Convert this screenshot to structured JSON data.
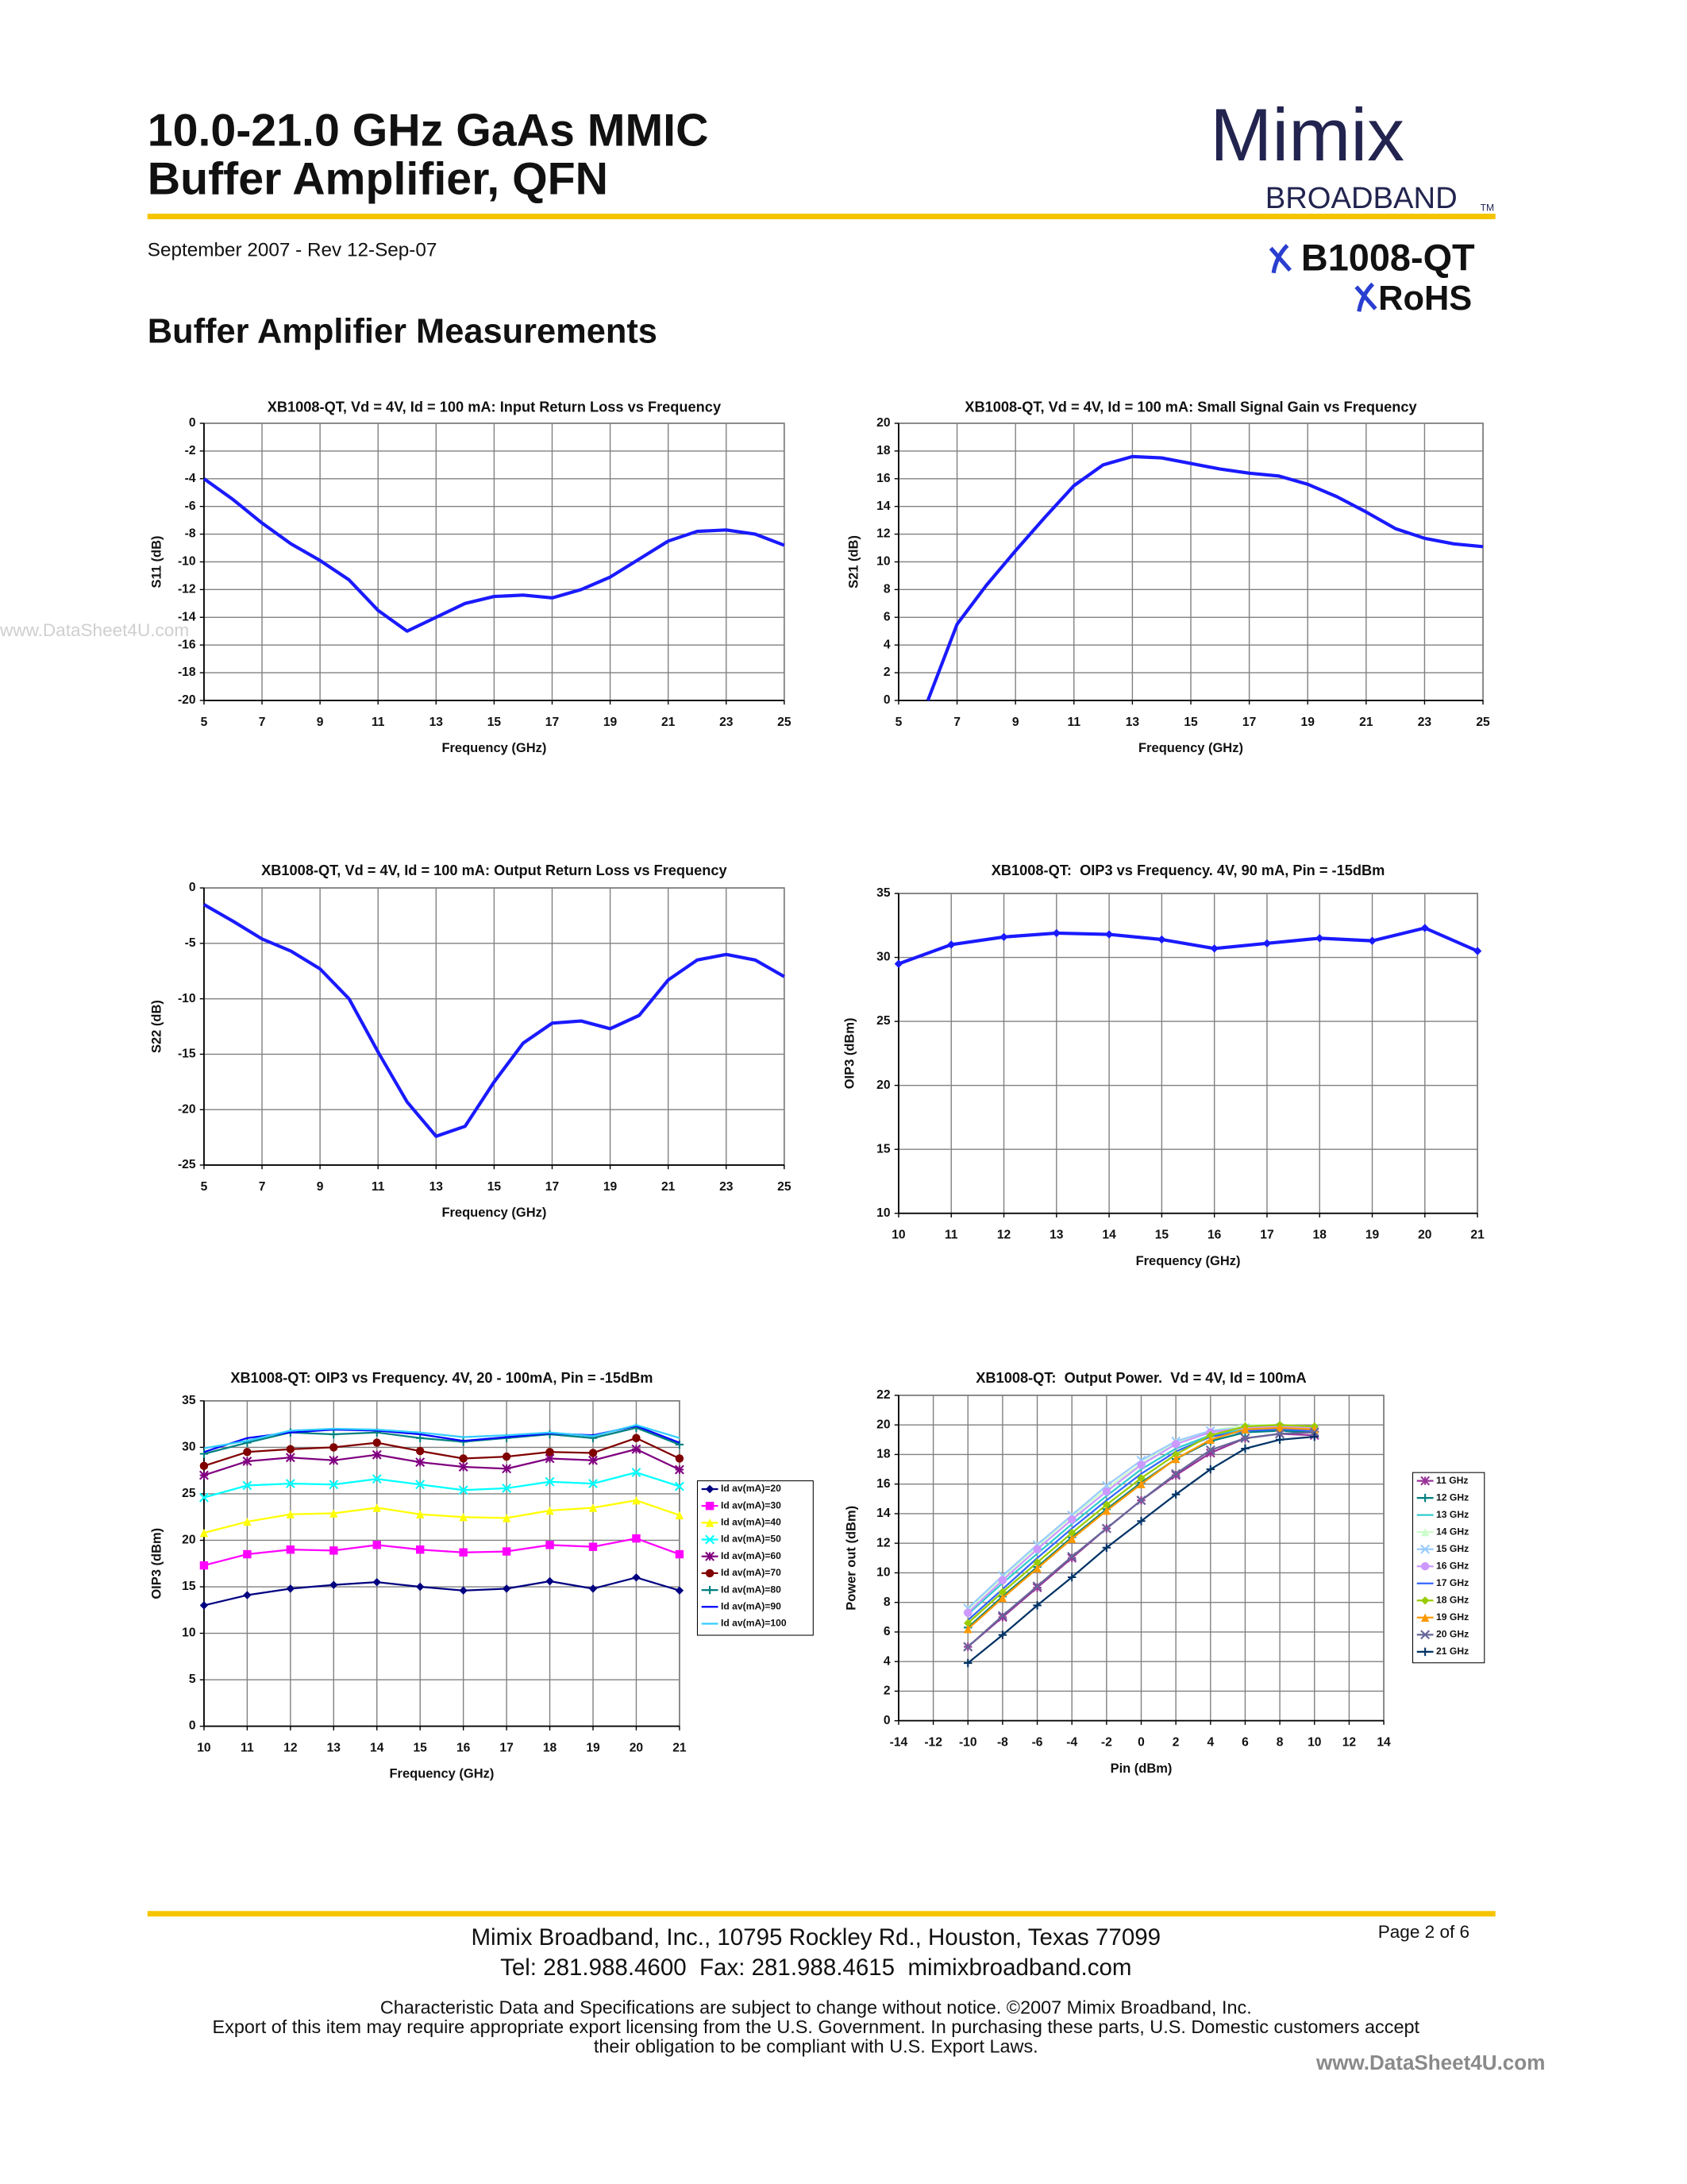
{
  "header": {
    "title_lines": [
      "10.0-21.0 GHz GaAs MMIC",
      "Buffer Amplifier, QFN"
    ],
    "date": "September 2007 - Rev 12-Sep-07",
    "logo": "Mimix",
    "logo_sub": "BROADBAND",
    "trademark": "TM",
    "part_number": "B1008-QT",
    "rohs": "RoHS"
  },
  "section_title": "Buffer Amplifier Measurements",
  "watermarks": [
    "www.DataSheet4U.com",
    "www.DataSheet4U.com"
  ],
  "chart_data": [
    {
      "type": "line",
      "title": "XB1008-QT, Vd = 4V, Id = 100 mA: Input Return Loss vs Frequency",
      "xlabel": "Frequency (GHz)",
      "ylabel": "S11 (dB)",
      "color": "#1a1aff",
      "grid": true,
      "x": [
        5,
        6,
        7,
        8,
        9,
        10,
        11,
        12,
        13,
        14,
        15,
        16,
        17,
        18,
        19,
        20,
        21,
        22,
        23,
        24,
        25
      ],
      "values": [
        -4.0,
        -5.5,
        -7.2,
        -8.7,
        -9.9,
        -11.3,
        -13.5,
        -15.0,
        -14.0,
        -13.0,
        -12.5,
        -12.4,
        -12.6,
        -12.0,
        -11.1,
        -9.8,
        -8.5,
        -7.8,
        -7.7,
        -8.0,
        -8.8
      ],
      "xlim": [
        5,
        25
      ],
      "xticks": [
        5,
        7,
        9,
        11,
        13,
        15,
        17,
        19,
        21,
        23,
        25
      ],
      "ylim": [
        -20,
        0
      ],
      "yticks": [
        0,
        -2,
        -4,
        -6,
        -8,
        -10,
        -12,
        -14,
        -16,
        -18,
        -20
      ]
    },
    {
      "type": "line",
      "title": "XB1008-QT, Vd = 4V, Id = 100 mA: Small Signal Gain vs Frequency",
      "xlabel": "Frequency (GHz)",
      "ylabel": "S21 (dB)",
      "color": "#1a1aff",
      "grid": true,
      "x": [
        6,
        7,
        8,
        9,
        10,
        11,
        12,
        13,
        14,
        15,
        16,
        17,
        18,
        19,
        20,
        21,
        22,
        23,
        24,
        25
      ],
      "values": [
        0,
        5.5,
        8.3,
        10.8,
        13.2,
        15.5,
        17.0,
        17.6,
        17.5,
        17.1,
        16.7,
        16.4,
        16.2,
        15.6,
        14.7,
        13.6,
        12.4,
        11.7,
        11.3,
        11.1
      ],
      "xlim": [
        5,
        25
      ],
      "xticks": [
        5,
        7,
        9,
        11,
        13,
        15,
        17,
        19,
        21,
        23,
        25
      ],
      "ylim": [
        0,
        20
      ],
      "yticks": [
        20,
        18,
        16,
        14,
        12,
        10,
        8,
        6,
        4,
        2,
        0
      ]
    },
    {
      "type": "line",
      "title": "XB1008-QT, Vd = 4V, Id = 100 mA: Output Return Loss vs Frequency",
      "xlabel": "Frequency (GHz)",
      "ylabel": "S22 (dB)",
      "color": "#1a1aff",
      "grid": true,
      "x": [
        5,
        6,
        7,
        8,
        9,
        10,
        11,
        12,
        13,
        14,
        15,
        16,
        17,
        18,
        19,
        20,
        21,
        22,
        23,
        24,
        25
      ],
      "values": [
        -1.5,
        -3.0,
        -4.6,
        -5.7,
        -7.3,
        -10.0,
        -14.8,
        -19.3,
        -22.4,
        -21.5,
        -17.5,
        -14.0,
        -12.2,
        -12.0,
        -12.7,
        -11.5,
        -8.3,
        -6.5,
        -6.0,
        -6.5,
        -8.0
      ],
      "xlim": [
        5,
        25
      ],
      "xticks": [
        5,
        7,
        9,
        11,
        13,
        15,
        17,
        19,
        21,
        23,
        25
      ],
      "ylim": [
        -25,
        0
      ],
      "yticks": [
        0,
        -5,
        -10,
        -15,
        -20,
        -25
      ]
    },
    {
      "type": "line",
      "title": "XB1008-QT:  OIP3 vs Frequency. 4V, 90 mA, Pin = -15dBm",
      "xlabel": "Frequency (GHz)",
      "ylabel": "OIP3 (dBm)",
      "color": "#1a1aff",
      "marker": "diamond",
      "grid": true,
      "x": [
        10,
        11,
        12,
        13,
        14,
        15,
        16,
        17,
        18,
        19,
        20,
        21
      ],
      "values": [
        29.5,
        31.0,
        31.6,
        31.9,
        31.8,
        31.4,
        30.7,
        31.1,
        31.5,
        31.3,
        32.3,
        30.5
      ],
      "xlim": [
        10,
        21
      ],
      "xticks": [
        10,
        11,
        12,
        13,
        14,
        15,
        16,
        17,
        18,
        19,
        20,
        21
      ],
      "ylim": [
        10,
        35
      ],
      "yticks": [
        35,
        30,
        25,
        20,
        15,
        10
      ]
    },
    {
      "type": "line",
      "title": "XB1008-QT: OIP3 vs Frequency. 4V, 20 - 100mA, Pin = -15dBm",
      "xlabel": "Frequency (GHz)",
      "ylabel": "OIP3 (dBm)",
      "grid": true,
      "legend": "right",
      "x": [
        10,
        11,
        12,
        13,
        14,
        15,
        16,
        17,
        18,
        19,
        20,
        21
      ],
      "series": [
        {
          "name": "Id av(mA)=20",
          "color": "#000080",
          "marker": "diamond",
          "values": [
            13.0,
            14.1,
            14.8,
            15.2,
            15.5,
            15.0,
            14.6,
            14.8,
            15.6,
            14.8,
            16.0,
            14.6
          ]
        },
        {
          "name": "Id av(mA)=30",
          "color": "#ff00ff",
          "marker": "square",
          "values": [
            17.3,
            18.5,
            19.0,
            18.9,
            19.5,
            19.0,
            18.7,
            18.8,
            19.5,
            19.3,
            20.2,
            18.5
          ]
        },
        {
          "name": "Id av(mA)=40",
          "color": "#ffff00",
          "marker": "triangle",
          "values": [
            20.8,
            22.0,
            22.8,
            22.9,
            23.5,
            22.8,
            22.5,
            22.4,
            23.2,
            23.5,
            24.3,
            22.7
          ]
        },
        {
          "name": "Id av(mA)=50",
          "color": "#00ffff",
          "marker": "x",
          "values": [
            24.6,
            25.9,
            26.1,
            26.0,
            26.6,
            26.0,
            25.4,
            25.6,
            26.3,
            26.1,
            27.3,
            25.8
          ]
        },
        {
          "name": "Id av(mA)=60",
          "color": "#800080",
          "marker": "star",
          "values": [
            27.0,
            28.5,
            28.9,
            28.6,
            29.2,
            28.4,
            27.9,
            27.7,
            28.8,
            28.6,
            29.8,
            27.6
          ]
        },
        {
          "name": "Id av(mA)=70",
          "color": "#800000",
          "marker": "circle",
          "values": [
            28.0,
            29.5,
            29.8,
            30.0,
            30.5,
            29.6,
            28.8,
            29.0,
            29.5,
            29.4,
            31.0,
            28.8
          ]
        },
        {
          "name": "Id av(mA)=80",
          "color": "#008080",
          "marker": "plus",
          "values": [
            29.3,
            30.5,
            31.6,
            31.4,
            31.6,
            31.0,
            30.6,
            31.0,
            31.4,
            31.0,
            32.1,
            30.3
          ]
        },
        {
          "name": "Id av(mA)=90",
          "color": "#0000ff",
          "marker": "none",
          "values": [
            29.5,
            31.0,
            31.6,
            31.9,
            31.8,
            31.4,
            30.7,
            31.1,
            31.5,
            31.3,
            32.3,
            30.5
          ]
        },
        {
          "name": "Id av(mA)=100",
          "color": "#33ccff",
          "marker": "none",
          "values": [
            29.9,
            30.7,
            31.8,
            32.0,
            31.9,
            31.6,
            31.1,
            31.3,
            31.6,
            31.2,
            32.4,
            31.0
          ]
        }
      ],
      "xlim": [
        10,
        21
      ],
      "xticks": [
        10,
        11,
        12,
        13,
        14,
        15,
        16,
        17,
        18,
        19,
        20,
        21
      ],
      "ylim": [
        0,
        35
      ],
      "yticks": [
        35,
        30,
        25,
        20,
        15,
        10,
        5,
        0
      ]
    },
    {
      "type": "line",
      "title": "XB1008-QT:  Output Power.  Vd = 4V, Id = 100mA",
      "xlabel": "Pin (dBm)",
      "ylabel": "Power out (dBm)",
      "grid": true,
      "legend": "right",
      "x": [
        -10,
        -8,
        -6,
        -4,
        -2,
        0,
        2,
        4,
        6,
        8,
        10
      ],
      "series": [
        {
          "name": "11 GHz",
          "color": "#993399",
          "marker": "star",
          "values": [
            5.0,
            7.0,
            9.0,
            11.0,
            13.0,
            14.9,
            16.6,
            18.1,
            19.1,
            19.4,
            19.3
          ]
        },
        {
          "name": "12 GHz",
          "color": "#008080",
          "marker": "plus",
          "values": [
            6.3,
            8.4,
            10.4,
            12.4,
            14.3,
            16.1,
            17.7,
            18.9,
            19.5,
            19.6,
            19.5
          ]
        },
        {
          "name": "13 GHz",
          "color": "#33cccc",
          "marker": "none",
          "values": [
            7.2,
            9.3,
            11.3,
            13.3,
            15.2,
            17.0,
            18.4,
            19.3,
            19.7,
            19.8,
            19.6
          ]
        },
        {
          "name": "14 GHz",
          "color": "#ccffcc",
          "marker": "triangle",
          "values": [
            7.5,
            9.7,
            11.8,
            13.8,
            15.7,
            17.4,
            18.8,
            19.6,
            20.0,
            20.0,
            19.9
          ]
        },
        {
          "name": "15 GHz",
          "color": "#99ccff",
          "marker": "x",
          "values": [
            7.6,
            9.8,
            11.9,
            13.9,
            15.9,
            17.6,
            18.9,
            19.6,
            19.8,
            19.8,
            19.7
          ]
        },
        {
          "name": "16 GHz",
          "color": "#cc99ff",
          "marker": "circle",
          "values": [
            7.3,
            9.5,
            11.6,
            13.6,
            15.5,
            17.3,
            18.7,
            19.5,
            19.8,
            19.9,
            19.8
          ]
        },
        {
          "name": "17 GHz",
          "color": "#3366ff",
          "marker": "none",
          "values": [
            6.8,
            8.9,
            11.0,
            13.0,
            14.9,
            16.7,
            18.2,
            19.2,
            19.6,
            19.7,
            19.6
          ]
        },
        {
          "name": "18 GHz",
          "color": "#99cc00",
          "marker": "diamond",
          "values": [
            6.6,
            8.7,
            10.7,
            12.7,
            14.6,
            16.4,
            18.0,
            19.3,
            19.9,
            20.0,
            19.9
          ]
        },
        {
          "name": "19 GHz",
          "color": "#ff9900",
          "marker": "triangle",
          "values": [
            6.2,
            8.3,
            10.3,
            12.3,
            14.2,
            16.0,
            17.7,
            19.0,
            19.7,
            19.8,
            19.7
          ]
        },
        {
          "name": "20 GHz",
          "color": "#666699",
          "marker": "x",
          "values": [
            5.0,
            7.1,
            9.1,
            11.1,
            13.0,
            14.9,
            16.7,
            18.3,
            19.1,
            19.4,
            19.5
          ]
        },
        {
          "name": "21 GHz",
          "color": "#003366",
          "marker": "plus",
          "values": [
            3.9,
            5.8,
            7.8,
            9.7,
            11.7,
            13.5,
            15.3,
            17.0,
            18.4,
            19.0,
            19.2
          ]
        }
      ],
      "xlim": [
        -14,
        14
      ],
      "xticks": [
        -14,
        -12,
        -10,
        -8,
        -6,
        -4,
        -2,
        0,
        2,
        4,
        6,
        8,
        10,
        12,
        14
      ],
      "ylim": [
        0,
        22
      ],
      "yticks": [
        22,
        20,
        18,
        16,
        14,
        12,
        10,
        8,
        6,
        4,
        2,
        0
      ]
    }
  ],
  "footer": {
    "address": "Mimix Broadband, Inc., 10795 Rockley Rd., Houston, Texas 77099",
    "contact": "Tel: 281.988.4600  Fax: 281.988.4615  mimixbroadband.com",
    "page": "Page 2 of 6",
    "legal": [
      "Characteristic Data and Specifications are subject to change without notice. ©2007 Mimix Broadband, Inc.",
      "Export of this item may require appropriate export licensing from the U.S. Government. In purchasing these parts, U.S. Domestic customers accept",
      "their obligation to be compliant with U.S. Export Laws."
    ]
  }
}
